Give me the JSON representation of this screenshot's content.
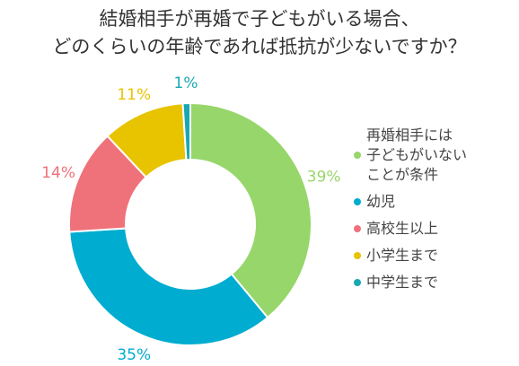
{
  "chart_data": {
    "type": "pie",
    "title_lines": [
      "結婚相手が再婚で子どもがいる場合、",
      "どのくらいの年齢であれば抵抗が少ないですか？"
    ],
    "categories": [
      "再婚相手には\n子どもがいない\nことが条件",
      "幼児",
      "高校生以上",
      "小学生まで",
      "中学生まで"
    ],
    "values": [
      39,
      35,
      14,
      11,
      1
    ],
    "value_labels": [
      "39%",
      "35%",
      "14%",
      "11%",
      "1%"
    ],
    "colors": [
      "#97d66a",
      "#00acd0",
      "#ef717a",
      "#e8c300",
      "#1aa8b3"
    ],
    "style": "donut",
    "legend_position": "right"
  }
}
